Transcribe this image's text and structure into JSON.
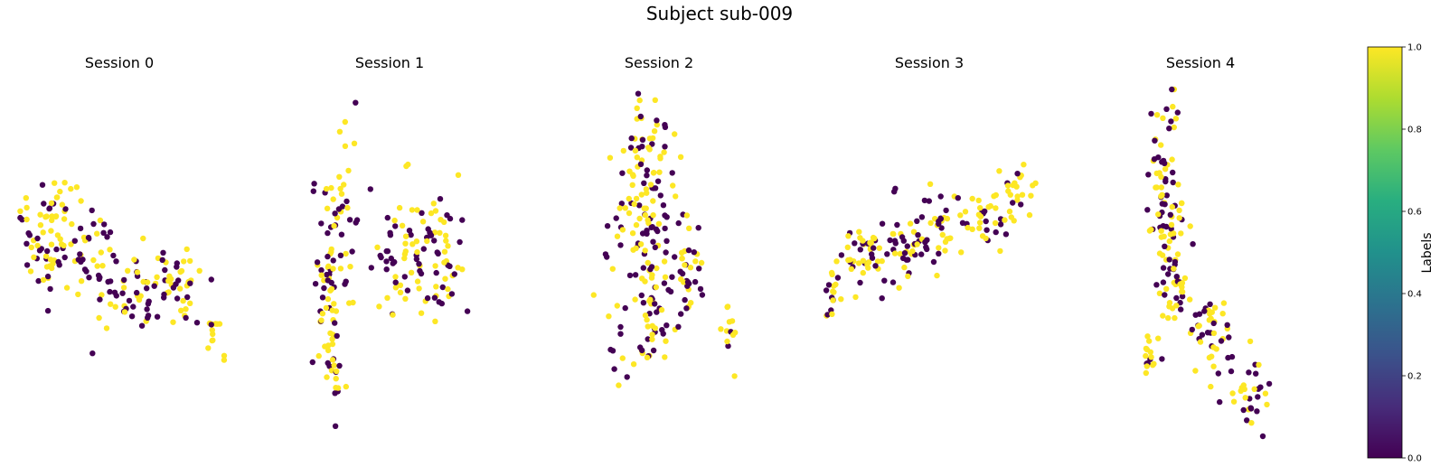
{
  "figure": {
    "title": "Subject sub-009"
  },
  "colormap": {
    "name": "viridis",
    "stops": [
      "#440154",
      "#472c7a",
      "#3b528b",
      "#2c728e",
      "#21918c",
      "#28ae80",
      "#5ec962",
      "#addc30",
      "#fde725"
    ],
    "low_color": "#440154",
    "high_color": "#fde725"
  },
  "colorbar": {
    "label": "Labels",
    "range": [
      0,
      1
    ],
    "ticks": [
      "0.0",
      "0.2",
      "0.4",
      "0.6",
      "0.8",
      "1.0"
    ],
    "tick_values": [
      0.0,
      0.2,
      0.4,
      0.6,
      0.8,
      1.0
    ]
  },
  "chart_data": [
    {
      "type": "scatter",
      "title": "Session 0",
      "axes_visible": false,
      "xlim": [
        0,
        100
      ],
      "ylim": [
        0,
        100
      ],
      "color_by": "label",
      "label_range": [
        0,
        1
      ],
      "clusters": [
        {
          "cx": 10,
          "cy": 58,
          "sx": 5,
          "sy": 9,
          "n": 45,
          "p": 0.5,
          "seed": 11
        },
        {
          "cx": 22,
          "cy": 64,
          "sx": 4,
          "sy": 10,
          "n": 35,
          "p": 0.55,
          "seed": 12
        },
        {
          "cx": 33,
          "cy": 52,
          "sx": 5,
          "sy": 8,
          "n": 25,
          "p": 0.55,
          "seed": 13
        },
        {
          "cx": 45,
          "cy": 45,
          "sx": 5,
          "sy": 5,
          "n": 25,
          "p": 0.45,
          "seed": 14
        },
        {
          "cx": 60,
          "cy": 44,
          "sx": 7,
          "sy": 6,
          "n": 40,
          "p": 0.5,
          "seed": 15
        },
        {
          "cx": 78,
          "cy": 43,
          "sx": 5,
          "sy": 7,
          "n": 30,
          "p": 0.5,
          "seed": 16
        },
        {
          "cx": 92,
          "cy": 30,
          "sx": 3,
          "sy": 5,
          "n": 12,
          "p": 0.7,
          "seed": 17
        }
      ],
      "points": [
        {
          "x": 35,
          "y": 24,
          "label": 0
        },
        {
          "x": 97,
          "y": 22,
          "label": 1
        }
      ]
    },
    {
      "type": "scatter",
      "title": "Session 1",
      "axes_visible": false,
      "xlim": [
        0,
        100
      ],
      "ylim": [
        0,
        100
      ],
      "color_by": "label",
      "label_range": [
        0,
        1
      ],
      "clusters": [
        {
          "cx": 10,
          "cy": 42,
          "sx": 4,
          "sy": 16,
          "n": 55,
          "p": 0.55,
          "seed": 21
        },
        {
          "cx": 18,
          "cy": 65,
          "sx": 5,
          "sy": 14,
          "n": 40,
          "p": 0.5,
          "seed": 22
        },
        {
          "cx": 15,
          "cy": 16,
          "sx": 3,
          "sy": 6,
          "n": 12,
          "p": 0.4,
          "seed": 23
        },
        {
          "cx": 52,
          "cy": 54,
          "sx": 9,
          "sy": 9,
          "n": 60,
          "p": 0.5,
          "seed": 24
        },
        {
          "cx": 76,
          "cy": 52,
          "sx": 7,
          "sy": 10,
          "n": 45,
          "p": 0.45,
          "seed": 25
        }
      ],
      "points": [
        {
          "x": 56,
          "y": 80,
          "label": 1
        },
        {
          "x": 57,
          "y": 80.5,
          "label": 1
        }
      ]
    },
    {
      "type": "scatter",
      "title": "Session 2",
      "axes_visible": false,
      "xlim": [
        0,
        100
      ],
      "ylim": [
        0,
        100
      ],
      "color_by": "label",
      "label_range": [
        0,
        1
      ],
      "clusters": [
        {
          "cx": 37,
          "cy": 82,
          "sx": 8,
          "sy": 8,
          "n": 40,
          "p": 0.55,
          "seed": 31
        },
        {
          "cx": 35,
          "cy": 60,
          "sx": 11,
          "sy": 10,
          "n": 75,
          "p": 0.5,
          "seed": 32
        },
        {
          "cx": 40,
          "cy": 35,
          "sx": 13,
          "sy": 10,
          "n": 80,
          "p": 0.5,
          "seed": 33
        },
        {
          "cx": 62,
          "cy": 48,
          "sx": 5,
          "sy": 8,
          "n": 25,
          "p": 0.6,
          "seed": 34
        },
        {
          "cx": 90,
          "cy": 25,
          "sx": 2,
          "sy": 6,
          "n": 12,
          "p": 0.55,
          "seed": 35
        }
      ],
      "points": [
        {
          "x": 30,
          "y": 99,
          "label": 0
        },
        {
          "x": 31,
          "y": 97,
          "label": 1
        },
        {
          "x": 42,
          "y": 91,
          "label": 0
        }
      ]
    },
    {
      "type": "scatter",
      "title": "Session 3",
      "axes_visible": false,
      "xlim": [
        0,
        100
      ],
      "ylim": [
        0,
        100
      ],
      "color_by": "label",
      "label_range": [
        0,
        1
      ],
      "clusters": [
        {
          "cx": 5,
          "cy": 33,
          "sx": 2,
          "sy": 5,
          "n": 18,
          "p": 0.45,
          "seed": 41
        },
        {
          "cx": 20,
          "cy": 46,
          "sx": 6,
          "sy": 6,
          "n": 45,
          "p": 0.55,
          "seed": 42
        },
        {
          "cx": 36,
          "cy": 48,
          "sx": 6,
          "sy": 5,
          "n": 35,
          "p": 0.5,
          "seed": 43
        },
        {
          "cx": 55,
          "cy": 56,
          "sx": 6,
          "sy": 7,
          "n": 40,
          "p": 0.5,
          "seed": 44
        },
        {
          "cx": 75,
          "cy": 60,
          "sx": 6,
          "sy": 5,
          "n": 35,
          "p": 0.55,
          "seed": 45
        },
        {
          "cx": 90,
          "cy": 68,
          "sx": 4,
          "sy": 5,
          "n": 20,
          "p": 0.65,
          "seed": 46
        }
      ],
      "points": [
        {
          "x": 33,
          "y": 67,
          "label": 0
        },
        {
          "x": 33.5,
          "y": 68,
          "label": 0
        }
      ]
    },
    {
      "type": "scatter",
      "title": "Session 4",
      "axes_visible": false,
      "xlim": [
        0,
        100
      ],
      "ylim": [
        0,
        100
      ],
      "color_by": "label",
      "label_range": [
        0,
        1
      ],
      "clusters": [
        {
          "cx": 16,
          "cy": 83,
          "sx": 5,
          "sy": 7,
          "n": 30,
          "p": 0.55,
          "seed": 51
        },
        {
          "cx": 18,
          "cy": 62,
          "sx": 6,
          "sy": 9,
          "n": 50,
          "p": 0.55,
          "seed": 52
        },
        {
          "cx": 22,
          "cy": 43,
          "sx": 6,
          "sy": 7,
          "n": 40,
          "p": 0.55,
          "seed": 53
        },
        {
          "cx": 6,
          "cy": 25,
          "sx": 1.5,
          "sy": 3,
          "n": 14,
          "p": 0.75,
          "seed": 54
        },
        {
          "cx": 50,
          "cy": 30,
          "sx": 7,
          "sy": 6,
          "n": 40,
          "p": 0.5,
          "seed": 55
        },
        {
          "cx": 75,
          "cy": 14,
          "sx": 6,
          "sy": 6,
          "n": 30,
          "p": 0.45,
          "seed": 56
        }
      ],
      "points": [
        {
          "x": 22,
          "y": 99,
          "label": 0
        },
        {
          "x": 83,
          "y": 3,
          "label": 0
        }
      ]
    }
  ]
}
